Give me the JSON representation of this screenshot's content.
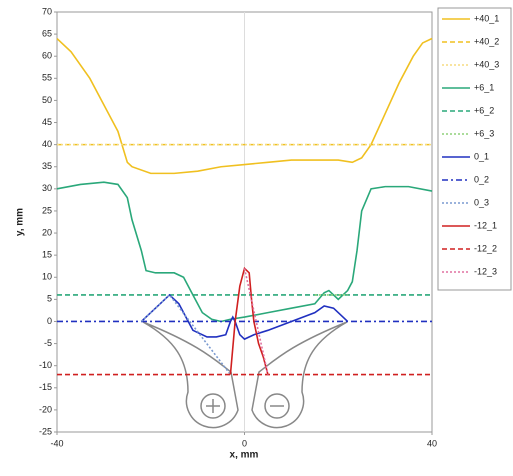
{
  "chart_data": {
    "type": "line",
    "xlabel": "x, mm",
    "ylabel": "y, mm",
    "xlim": [
      -40,
      40
    ],
    "xticks": [
      -40,
      0,
      40
    ],
    "ylim": [
      -25,
      70
    ],
    "yticks": [
      -25,
      -20,
      -15,
      -10,
      -5,
      0,
      5,
      10,
      15,
      20,
      25,
      30,
      35,
      40,
      45,
      50,
      55,
      60,
      65,
      70
    ],
    "grid": "x-zero",
    "legend": "right",
    "series": [
      {
        "name": "+40_1",
        "color": "#f0c020",
        "dash": "solid",
        "x": [
          -40,
          -37,
          -33,
          -30,
          -27,
          -25,
          -24,
          -20,
          -15,
          -10,
          -5,
          0,
          5,
          10,
          15,
          20,
          23,
          25,
          27,
          30,
          33,
          36,
          38,
          40
        ],
        "values": [
          64,
          61,
          55,
          49,
          43,
          36,
          35,
          33.5,
          33.5,
          34,
          35,
          35.5,
          36,
          36.5,
          36.5,
          36.5,
          36,
          37,
          40,
          47,
          54,
          60,
          63,
          64
        ]
      },
      {
        "name": "+40_2",
        "color": "#f0c020",
        "dash": "dashed",
        "x": [
          -40,
          40
        ],
        "values": [
          40,
          40
        ]
      },
      {
        "name": "+40_3",
        "color": "#f5dc80",
        "dash": "dotted",
        "x": [
          -40,
          40
        ],
        "values": [
          40,
          40
        ]
      },
      {
        "name": "+6_1",
        "color": "#2aa87a",
        "dash": "solid",
        "x": [
          -40,
          -35,
          -30,
          -27,
          -25,
          -24,
          -22,
          -21,
          -19,
          -15,
          -13,
          -11,
          -9,
          -7,
          -5,
          -3,
          0,
          5,
          10,
          15,
          17,
          18,
          20,
          22,
          23,
          24,
          25,
          27,
          30,
          35,
          40
        ],
        "values": [
          30,
          31,
          31.5,
          31,
          28,
          23,
          16,
          11.5,
          11,
          11,
          10,
          6,
          2,
          0.5,
          0,
          0.5,
          1,
          2,
          3,
          4,
          6.5,
          7,
          5,
          7,
          9,
          16,
          25,
          30,
          30.5,
          30.5,
          29.5
        ]
      },
      {
        "name": "+6_2",
        "color": "#2aa87a",
        "dash": "dashed",
        "x": [
          -40,
          40
        ],
        "values": [
          6,
          6
        ]
      },
      {
        "name": "+6_3",
        "color": "#8fd17a",
        "dash": "dotted",
        "x": [
          15,
          22
        ],
        "values": [
          6,
          6
        ]
      },
      {
        "name": "0_1",
        "color": "#2030c0",
        "dash": "solid",
        "x": [
          -22,
          -18,
          -16,
          -14,
          -12,
          -11,
          -8,
          -6,
          -4,
          -3,
          -2.5,
          -2,
          -1,
          0,
          2,
          5,
          10,
          15,
          17,
          19,
          22
        ],
        "values": [
          0,
          4,
          6,
          4,
          0,
          -2,
          -3.5,
          -3.5,
          -3,
          0,
          1,
          0,
          -3,
          -4,
          -3,
          -2,
          0,
          2,
          3.5,
          3,
          0
        ]
      },
      {
        "name": "0_2",
        "color": "#2030c0",
        "dash": "dashdot",
        "x": [
          -40,
          40
        ],
        "values": [
          0,
          0
        ]
      },
      {
        "name": "0_3",
        "color": "#7a9ad0",
        "dash": "dotted",
        "x": [
          -22,
          -16,
          -3
        ],
        "values": [
          0,
          6,
          -12
        ]
      },
      {
        "name": "-12_1",
        "color": "#d02020",
        "dash": "solid",
        "x": [
          -3,
          -2,
          -1,
          0,
          1,
          1.5,
          2,
          3,
          4,
          5
        ],
        "values": [
          -12,
          0,
          8,
          12,
          11,
          5,
          0,
          -5,
          -8,
          -12
        ]
      },
      {
        "name": "-12_2",
        "color": "#d02020",
        "dash": "dashed",
        "x": [
          -40,
          40
        ],
        "values": [
          -12,
          -12
        ]
      },
      {
        "name": "-12_3",
        "color": "#e070a0",
        "dash": "dotted",
        "x": [
          0,
          5
        ],
        "values": [
          12,
          -12
        ]
      }
    ]
  }
}
